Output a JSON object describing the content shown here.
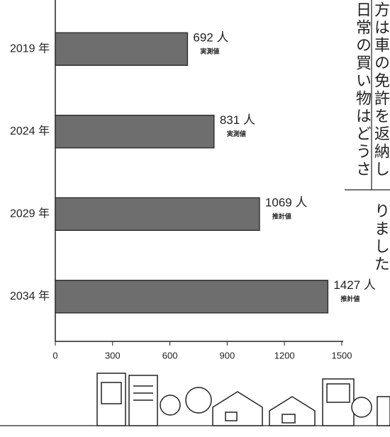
{
  "chart_data": {
    "type": "barh",
    "categories": [
      "2019 年",
      "2024 年",
      "2029 年",
      "2034 年"
    ],
    "values": [
      692,
      831,
      1069,
      1427
    ],
    "value_labels": [
      "692 人",
      "831 人",
      "1069 人",
      "1427 人"
    ],
    "annotations": [
      "実測値",
      "実測値",
      "推計値",
      "推計値"
    ],
    "color": "#6e6e6e",
    "xlim": [
      0,
      1500
    ],
    "xticks": [
      0,
      300,
      600,
      900,
      1200,
      1500
    ]
  },
  "side_text": [
    "日常の買い物はどうさ",
    "方は車の免許を返納し",
    "りました"
  ]
}
